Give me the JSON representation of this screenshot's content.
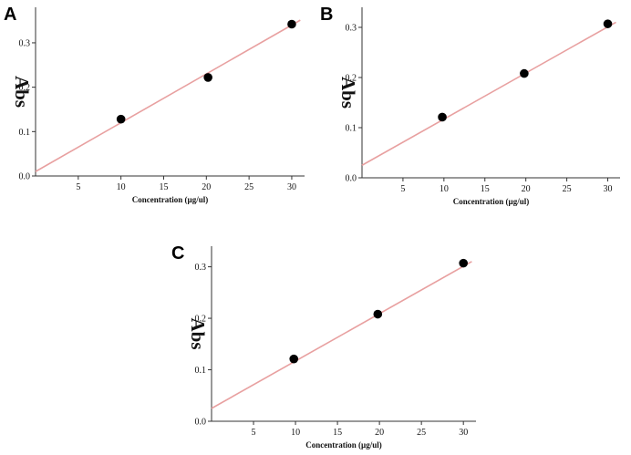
{
  "chart_data": [
    {
      "type": "scatter",
      "panel": "A",
      "xlabel": "Concentration (µg/ul)",
      "ylabel": "Abs",
      "xlim": [
        0,
        31.5
      ],
      "ylim": [
        0,
        0.38
      ],
      "xticks": [
        5,
        10,
        15,
        20,
        25,
        30
      ],
      "yticks": [
        0.0,
        0.1,
        0.2,
        0.3
      ],
      "ytick_labels": [
        "0.0",
        "0.1",
        "0.2",
        "0.3"
      ],
      "points": [
        {
          "x": 10,
          "y": 0.128
        },
        {
          "x": 20.2,
          "y": 0.222
        },
        {
          "x": 30,
          "y": 0.342
        }
      ],
      "fit": {
        "slope": 0.011,
        "intercept": 0.01,
        "x_range": [
          0,
          31
        ]
      }
    },
    {
      "type": "scatter",
      "panel": "B",
      "xlabel": "Concentration (µg/ul)",
      "ylabel": "Abs",
      "xlim": [
        0,
        31.5
      ],
      "ylim": [
        0,
        0.34
      ],
      "xticks": [
        5,
        10,
        15,
        20,
        25,
        30
      ],
      "yticks": [
        0.0,
        0.1,
        0.2,
        0.3
      ],
      "ytick_labels": [
        "0.0",
        "0.1",
        "0.2",
        "0.3"
      ],
      "points": [
        {
          "x": 9.8,
          "y": 0.121
        },
        {
          "x": 19.8,
          "y": 0.208
        },
        {
          "x": 30,
          "y": 0.307
        }
      ],
      "fit": {
        "slope": 0.0092,
        "intercept": 0.025,
        "x_range": [
          0,
          31
        ]
      }
    },
    {
      "type": "scatter",
      "panel": "C",
      "xlabel": "Concentration (µg/ul)",
      "ylabel": "Abs",
      "xlim": [
        0,
        31.5
      ],
      "ylim": [
        0,
        0.34
      ],
      "xticks": [
        5,
        10,
        15,
        20,
        25,
        30
      ],
      "yticks": [
        0.0,
        0.1,
        0.2,
        0.3
      ],
      "ytick_labels": [
        "0.0",
        "0.1",
        "0.2",
        "0.3"
      ],
      "points": [
        {
          "x": 9.8,
          "y": 0.121
        },
        {
          "x": 19.8,
          "y": 0.208
        },
        {
          "x": 30,
          "y": 0.307
        }
      ],
      "fit": {
        "slope": 0.0092,
        "intercept": 0.025,
        "x_range": [
          0,
          31
        ]
      }
    }
  ]
}
